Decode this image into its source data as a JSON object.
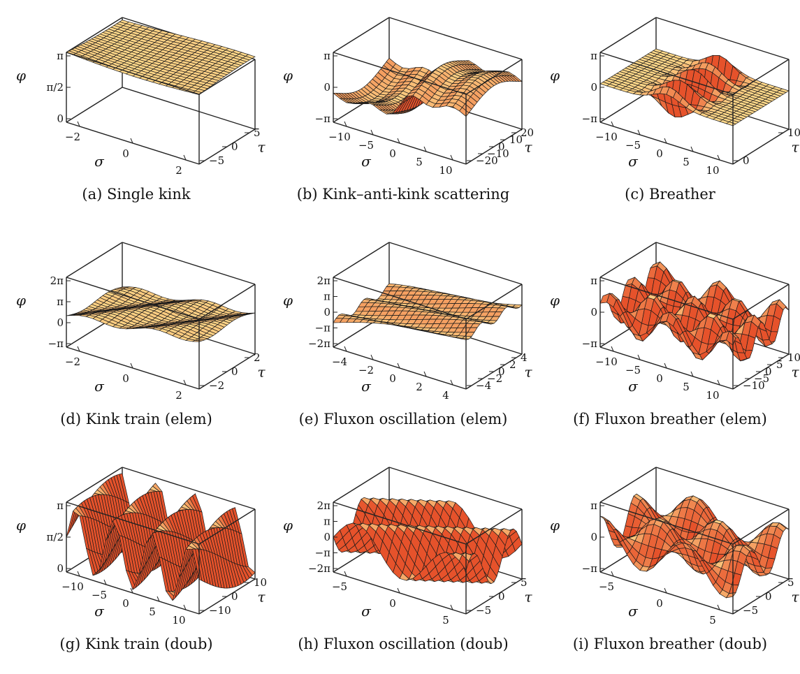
{
  "chart_data": [
    {
      "type": "surface",
      "id": "a",
      "caption": "(a) Single kink",
      "zlabel": "φ",
      "xlabel": "σ",
      "ylabel": "τ",
      "zticks": [
        "π",
        "π/2",
        "0"
      ],
      "xticks": [
        "−2",
        "0",
        "2"
      ],
      "yticks": [
        "5",
        "0",
        "−5"
      ],
      "xlim": [
        -3,
        3
      ],
      "ylim": [
        -6,
        6
      ],
      "zlim": [
        0,
        3.1416
      ],
      "func": "kink"
    },
    {
      "type": "surface",
      "id": "b",
      "caption": "(b) Kink–anti-kink scattering",
      "zlabel": "φ",
      "xlabel": "σ",
      "ylabel": "τ",
      "zticks": [
        "π",
        "0",
        "−π"
      ],
      "xticks": [
        "−10",
        "−5",
        "0",
        "5",
        "10"
      ],
      "yticks": [
        "20",
        "10",
        "0",
        "−10",
        "−20"
      ],
      "xlim": [
        -10,
        10
      ],
      "ylim": [
        -25,
        25
      ],
      "zlim": [
        -3.1416,
        3.1416
      ],
      "func": "scatter"
    },
    {
      "type": "surface",
      "id": "c",
      "caption": "(c) Breather",
      "zlabel": "φ",
      "xlabel": "σ",
      "ylabel": "τ",
      "zticks": [
        "π",
        "0",
        "−π"
      ],
      "xticks": [
        "−10",
        "−5",
        "0",
        "5",
        "10"
      ],
      "yticks": [
        "10",
        "0"
      ],
      "xlim": [
        -10,
        10
      ],
      "ylim": [
        -15,
        15
      ],
      "zlim": [
        -3.1416,
        3.1416
      ],
      "func": "breather"
    },
    {
      "type": "surface",
      "id": "d",
      "caption": "(d) Kink train (elem)",
      "zlabel": "φ",
      "xlabel": "σ",
      "ylabel": "τ",
      "zticks": [
        "2π",
        "π",
        "0",
        "−π"
      ],
      "xticks": [
        "−2",
        "0",
        "2"
      ],
      "yticks": [
        "2",
        "0",
        "−2"
      ],
      "xlim": [
        -3,
        3
      ],
      "ylim": [
        -3,
        3
      ],
      "zlim": [
        -3.1416,
        6.2832
      ],
      "func": "train"
    },
    {
      "type": "surface",
      "id": "e",
      "caption": "(e) Fluxon oscillation (elem)",
      "zlabel": "φ",
      "xlabel": "σ",
      "ylabel": "τ",
      "zticks": [
        "2π",
        "π",
        "0",
        "−π",
        "−2π"
      ],
      "xticks": [
        "−4",
        "−2",
        "0",
        "2",
        "4"
      ],
      "yticks": [
        "4",
        "2",
        "0",
        "−2",
        "−4"
      ],
      "xlim": [
        -4,
        4
      ],
      "ylim": [
        -5,
        5
      ],
      "zlim": [
        -6.2832,
        6.2832
      ],
      "func": "oscillation"
    },
    {
      "type": "surface",
      "id": "f",
      "caption": "(f) Fluxon breather (elem)",
      "zlabel": "φ",
      "xlabel": "σ",
      "ylabel": "τ",
      "zticks": [
        "π",
        "0",
        "−π"
      ],
      "xticks": [
        "−10",
        "−5",
        "0",
        "5",
        "10"
      ],
      "yticks": [
        "10",
        "5",
        "0",
        "−5",
        "−10"
      ],
      "xlim": [
        -10,
        10
      ],
      "ylim": [
        -12,
        12
      ],
      "zlim": [
        -3.1416,
        3.1416
      ],
      "func": "fbreather"
    },
    {
      "type": "surface",
      "id": "g",
      "caption": "(g) Kink train (doub)",
      "zlabel": "φ",
      "xlabel": "σ",
      "ylabel": "τ",
      "zticks": [
        "π",
        "π/2",
        "0"
      ],
      "xticks": [
        "−10",
        "−5",
        "0",
        "5",
        "10"
      ],
      "yticks": [
        "10",
        "0",
        "−10"
      ],
      "xlim": [
        -10,
        10
      ],
      "ylim": [
        -15,
        15
      ],
      "zlim": [
        0,
        3.1416
      ],
      "func": "dtrain"
    },
    {
      "type": "surface",
      "id": "h",
      "caption": "(h) Fluxon oscillation (doub)",
      "zlabel": "φ",
      "xlabel": "σ",
      "ylabel": "τ",
      "zticks": [
        "2π",
        "π",
        "0",
        "−π",
        "−2π"
      ],
      "xticks": [
        "−5",
        "0",
        "5"
      ],
      "yticks": [
        "5",
        "0",
        "−5"
      ],
      "xlim": [
        -7,
        7
      ],
      "ylim": [
        -7,
        7
      ],
      "zlim": [
        -6.2832,
        6.2832
      ],
      "func": "dosc"
    },
    {
      "type": "surface",
      "id": "i",
      "caption": "(i) Fluxon breather (doub)",
      "zlabel": "φ",
      "xlabel": "σ",
      "ylabel": "τ",
      "zticks": [
        "π",
        "0",
        "−π"
      ],
      "xticks": [
        "−5",
        "0",
        "5"
      ],
      "yticks": [
        "5",
        "0",
        "−5"
      ],
      "xlim": [
        -7,
        7
      ],
      "ylim": [
        -7,
        7
      ],
      "zlim": [
        -3.1416,
        3.1416
      ],
      "func": "dbreather"
    }
  ],
  "colors": {
    "surface_light": "#ffd98a",
    "surface_dark": "#e23a1a",
    "mesh": "#1a1a1a",
    "box": "#222222"
  }
}
